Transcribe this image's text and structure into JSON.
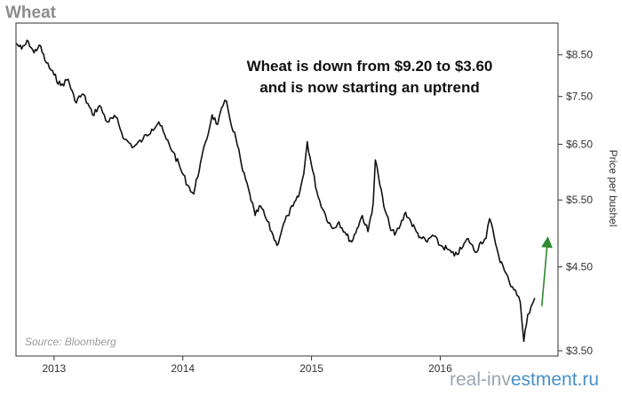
{
  "chart_data": {
    "type": "line",
    "title": "Wheat",
    "annotation": [
      "Wheat is down from $9.20 to $3.60",
      "and is now starting an uptrend"
    ],
    "ylabel": "Price  per bushel",
    "source": "Source: Bloomberg",
    "y_scale": "log",
    "ylim": [
      3.5,
      9.2
    ],
    "y_ticks": [
      {
        "value": 8.5,
        "label": "$8.50"
      },
      {
        "value": 7.5,
        "label": "$7.50"
      },
      {
        "value": 6.5,
        "label": "$6.50"
      },
      {
        "value": 5.5,
        "label": "$5.50"
      },
      {
        "value": 4.5,
        "label": "$4.50"
      },
      {
        "value": 3.5,
        "label": "$3.50"
      }
    ],
    "x_range": [
      "2012-09-15",
      "2016-11-30"
    ],
    "x_ticks": [
      {
        "value": "2013-01-01",
        "label": "2013"
      },
      {
        "value": "2014-01-01",
        "label": "2014"
      },
      {
        "value": "2015-01-01",
        "label": "2015"
      },
      {
        "value": "2016-01-01",
        "label": "2016"
      }
    ],
    "grid": false,
    "line_color": "#111111",
    "arrow_color": "#2e8b2e",
    "series": [
      {
        "points": [
          [
            "2012-09-15",
            8.8
          ],
          [
            "2012-10-01",
            8.65
          ],
          [
            "2012-10-20",
            8.85
          ],
          [
            "2012-11-05",
            8.55
          ],
          [
            "2012-11-20",
            8.75
          ],
          [
            "2012-12-10",
            8.3
          ],
          [
            "2013-01-01",
            8.0
          ],
          [
            "2013-01-20",
            7.75
          ],
          [
            "2013-02-10",
            7.9
          ],
          [
            "2013-03-01",
            7.4
          ],
          [
            "2013-03-25",
            7.55
          ],
          [
            "2013-04-20",
            7.1
          ],
          [
            "2013-05-10",
            7.3
          ],
          [
            "2013-06-01",
            6.95
          ],
          [
            "2013-06-25",
            7.05
          ],
          [
            "2013-07-20",
            6.6
          ],
          [
            "2013-08-15",
            6.45
          ],
          [
            "2013-09-10",
            6.6
          ],
          [
            "2013-10-05",
            6.8
          ],
          [
            "2013-10-25",
            6.95
          ],
          [
            "2013-11-15",
            6.6
          ],
          [
            "2013-12-05",
            6.35
          ],
          [
            "2013-12-25",
            6.05
          ],
          [
            "2014-01-15",
            5.75
          ],
          [
            "2014-02-01",
            5.6
          ],
          [
            "2014-02-20",
            6.15
          ],
          [
            "2014-03-10",
            6.6
          ],
          [
            "2014-03-25",
            7.1
          ],
          [
            "2014-04-10",
            6.9
          ],
          [
            "2014-04-25",
            7.3
          ],
          [
            "2014-05-05",
            7.4
          ],
          [
            "2014-05-15",
            7.0
          ],
          [
            "2014-06-01",
            6.6
          ],
          [
            "2014-06-20",
            6.0
          ],
          [
            "2014-07-10",
            5.6
          ],
          [
            "2014-07-25",
            5.25
          ],
          [
            "2014-08-10",
            5.4
          ],
          [
            "2014-08-25",
            5.2
          ],
          [
            "2014-09-10",
            5.0
          ],
          [
            "2014-09-25",
            4.8
          ],
          [
            "2014-10-10",
            5.05
          ],
          [
            "2014-10-25",
            5.25
          ],
          [
            "2014-11-10",
            5.4
          ],
          [
            "2014-11-25",
            5.55
          ],
          [
            "2014-12-10",
            5.95
          ],
          [
            "2014-12-20",
            6.55
          ],
          [
            "2015-01-01",
            6.1
          ],
          [
            "2015-01-20",
            5.55
          ],
          [
            "2015-02-10",
            5.25
          ],
          [
            "2015-03-01",
            5.05
          ],
          [
            "2015-03-20",
            5.15
          ],
          [
            "2015-04-10",
            4.95
          ],
          [
            "2015-04-25",
            4.85
          ],
          [
            "2015-05-10",
            5.05
          ],
          [
            "2015-05-25",
            5.25
          ],
          [
            "2015-06-10",
            5.0
          ],
          [
            "2015-06-25",
            5.45
          ],
          [
            "2015-07-01",
            6.2
          ],
          [
            "2015-07-10",
            5.9
          ],
          [
            "2015-07-25",
            5.4
          ],
          [
            "2015-08-10",
            5.1
          ],
          [
            "2015-08-25",
            4.95
          ],
          [
            "2015-09-10",
            5.1
          ],
          [
            "2015-09-25",
            5.3
          ],
          [
            "2015-10-10",
            5.15
          ],
          [
            "2015-10-25",
            5.0
          ],
          [
            "2015-11-10",
            4.9
          ],
          [
            "2015-11-25",
            4.85
          ],
          [
            "2015-12-10",
            4.95
          ],
          [
            "2016-01-01",
            4.8
          ],
          [
            "2016-01-20",
            4.75
          ],
          [
            "2016-02-10",
            4.65
          ],
          [
            "2016-03-01",
            4.75
          ],
          [
            "2016-03-20",
            4.9
          ],
          [
            "2016-04-10",
            4.7
          ],
          [
            "2016-04-25",
            4.85
          ],
          [
            "2016-05-10",
            4.9
          ],
          [
            "2016-05-20",
            5.2
          ],
          [
            "2016-06-01",
            4.95
          ],
          [
            "2016-06-15",
            4.65
          ],
          [
            "2016-07-01",
            4.45
          ],
          [
            "2016-07-15",
            4.3
          ],
          [
            "2016-08-01",
            4.2
          ],
          [
            "2016-08-15",
            4.05
          ],
          [
            "2016-08-25",
            3.6
          ],
          [
            "2016-09-05",
            3.9
          ],
          [
            "2016-09-15",
            4.0
          ],
          [
            "2016-09-25",
            4.1
          ]
        ]
      }
    ],
    "trend_arrow": {
      "from": [
        "2016-10-15",
        4.0
      ],
      "to": [
        "2016-10-31",
        4.85
      ]
    }
  },
  "watermark": {
    "part1": "real-inv",
    "part2": "estment.ru"
  }
}
